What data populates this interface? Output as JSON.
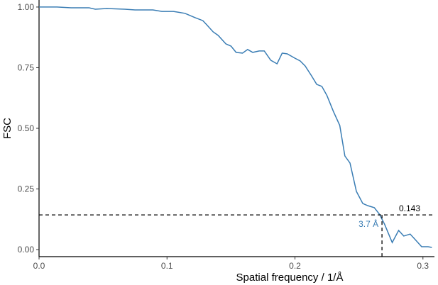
{
  "chart_data": {
    "type": "line",
    "xlabel": "Spatial frequency / 1/Å",
    "ylabel": "FSC",
    "x": [
      0,
      0.014,
      0.025,
      0.039,
      0.044,
      0.053,
      0.067,
      0.075,
      0.089,
      0.096,
      0.105,
      0.114,
      0.122,
      0.128,
      0.131,
      0.136,
      0.14,
      0.146,
      0.15,
      0.154,
      0.159,
      0.163,
      0.167,
      0.172,
      0.176,
      0.181,
      0.186,
      0.19,
      0.194,
      0.2,
      0.204,
      0.208,
      0.213,
      0.217,
      0.221,
      0.225,
      0.23,
      0.235,
      0.239,
      0.243,
      0.248,
      0.253,
      0.257,
      0.262,
      0.266,
      0.27,
      0.276,
      0.281,
      0.285,
      0.29,
      0.294,
      0.299,
      0.304,
      0.307
    ],
    "series": [
      {
        "color": "#3a7db4",
        "values": [
          1.0,
          1.0,
          0.997,
          0.997,
          0.991,
          0.994,
          0.991,
          0.988,
          0.988,
          0.982,
          0.982,
          0.974,
          0.956,
          0.944,
          0.927,
          0.898,
          0.883,
          0.848,
          0.839,
          0.813,
          0.81,
          0.825,
          0.813,
          0.819,
          0.819,
          0.781,
          0.766,
          0.81,
          0.807,
          0.789,
          0.778,
          0.757,
          0.716,
          0.681,
          0.673,
          0.635,
          0.57,
          0.512,
          0.386,
          0.357,
          0.24,
          0.19,
          0.181,
          0.173,
          0.146,
          0.105,
          0.029,
          0.079,
          0.056,
          0.064,
          0.041,
          0.012,
          0.012,
          0.009
        ]
      }
    ],
    "xlim": [
      0,
      0.309
    ],
    "ylim": [
      -0.029,
      1.029
    ],
    "xticks": [
      {
        "value": 0,
        "label": "0.0"
      },
      0.1,
      0.2,
      0.3
    ],
    "yticks": [
      {
        "value": 0,
        "label": "0.00"
      },
      0.25,
      {
        "value": 0.5,
        "label": "0.50"
      },
      0.75,
      {
        "value": 1,
        "label": "1.00"
      }
    ],
    "grid": false,
    "threshold": 0.143,
    "resolution": {
      "x": 0.268,
      "label": "3.7 Å",
      "color": "#3a7db4"
    }
  }
}
